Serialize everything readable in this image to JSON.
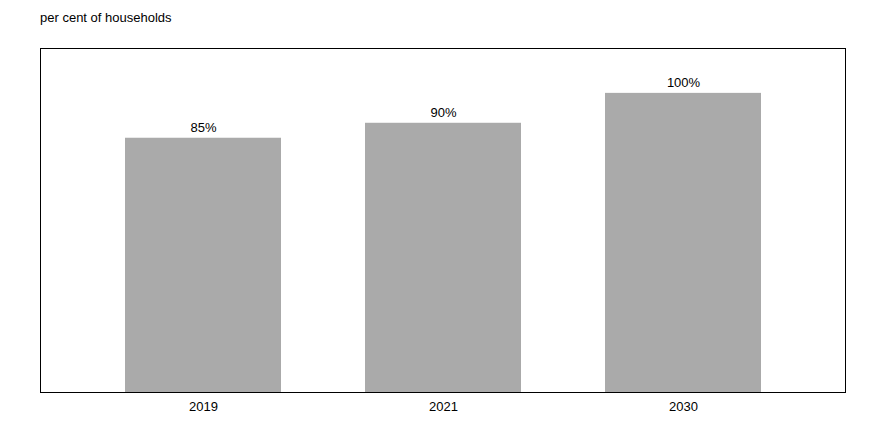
{
  "chart_data": {
    "type": "bar",
    "ylabel": "per cent of households",
    "categories": [
      "2019",
      "2021",
      "2030"
    ],
    "values": [
      85,
      90,
      100
    ],
    "value_labels": [
      "85%",
      "90%",
      "100%"
    ],
    "data_labels": true,
    "color": "#aaaaaa",
    "ylim": [
      0,
      115
    ],
    "tick_labels": "x",
    "grid": false
  }
}
